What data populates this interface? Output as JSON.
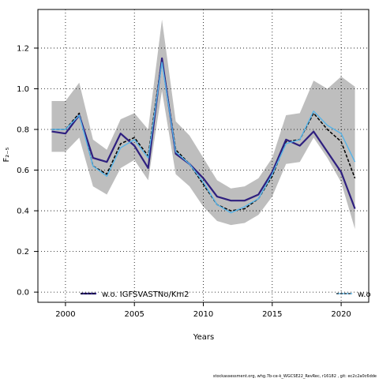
{
  "chart_data": {
    "type": "line",
    "ylabel": "F₂₋₅",
    "xlabel": "Years",
    "xlim": [
      1998,
      2022
    ],
    "ylim": [
      -0.05,
      1.39
    ],
    "x_ticks": [
      2000,
      2005,
      2010,
      2015,
      2020
    ],
    "y_ticks": [
      0.0,
      0.2,
      0.4,
      0.6,
      0.8,
      1.0,
      1.2
    ],
    "grid": true,
    "years": [
      1999,
      2000,
      2001,
      2002,
      2003,
      2004,
      2005,
      2006,
      2007,
      2008,
      2009,
      2010,
      2011,
      2012,
      2013,
      2014,
      2015,
      2016,
      2017,
      2018,
      2019,
      2020,
      2021
    ],
    "confidence_band": {
      "color": "#bebebe",
      "lower": [
        0.69,
        0.69,
        0.76,
        0.52,
        0.48,
        0.61,
        0.65,
        0.55,
        0.99,
        0.58,
        0.52,
        0.42,
        0.35,
        0.33,
        0.34,
        0.38,
        0.47,
        0.63,
        0.64,
        0.76,
        0.66,
        0.54,
        0.31
      ],
      "upper": [
        0.94,
        0.94,
        1.03,
        0.75,
        0.7,
        0.85,
        0.88,
        0.8,
        1.34,
        0.84,
        0.77,
        0.66,
        0.55,
        0.51,
        0.52,
        0.56,
        0.66,
        0.87,
        0.88,
        1.04,
        1.0,
        1.06,
        1.01
      ]
    },
    "series": [
      {
        "color": "#000000",
        "style": "dashed",
        "values": [
          0.8,
          0.8,
          0.88,
          0.62,
          0.58,
          0.73,
          0.76,
          0.67,
          1.15,
          0.7,
          0.63,
          0.53,
          0.43,
          0.4,
          0.41,
          0.46,
          0.57,
          0.74,
          0.75,
          0.88,
          0.8,
          0.74,
          0.56
        ]
      },
      {
        "name": "w.o. IGFSVASTNo/Km2",
        "color": "#2e1f7f",
        "style": "solid",
        "values": [
          0.79,
          0.78,
          0.87,
          0.66,
          0.64,
          0.78,
          0.72,
          0.61,
          1.15,
          0.68,
          0.63,
          0.56,
          0.47,
          0.45,
          0.45,
          0.48,
          0.59,
          0.75,
          0.72,
          0.79,
          0.69,
          0.59,
          0.41
        ]
      },
      {
        "name": "w.o",
        "color": "#56b4e9",
        "style": "solid",
        "values": [
          0.8,
          0.8,
          0.87,
          0.62,
          0.57,
          0.71,
          0.75,
          0.66,
          1.13,
          0.69,
          0.63,
          0.54,
          0.43,
          0.39,
          0.42,
          0.46,
          0.58,
          0.73,
          0.75,
          0.89,
          0.82,
          0.78,
          0.64
        ]
      }
    ],
    "legend": {
      "placement": "bottom",
      "entries": [
        "w.o. IGFSVASTNo/Km2",
        "w.o"
      ]
    }
  },
  "footer": {
    "source_note": "stockassessment.org, whg.7b-ce-k_WGCSE22_RevRec, r16182 , git: ec2c2a0c6dde"
  }
}
